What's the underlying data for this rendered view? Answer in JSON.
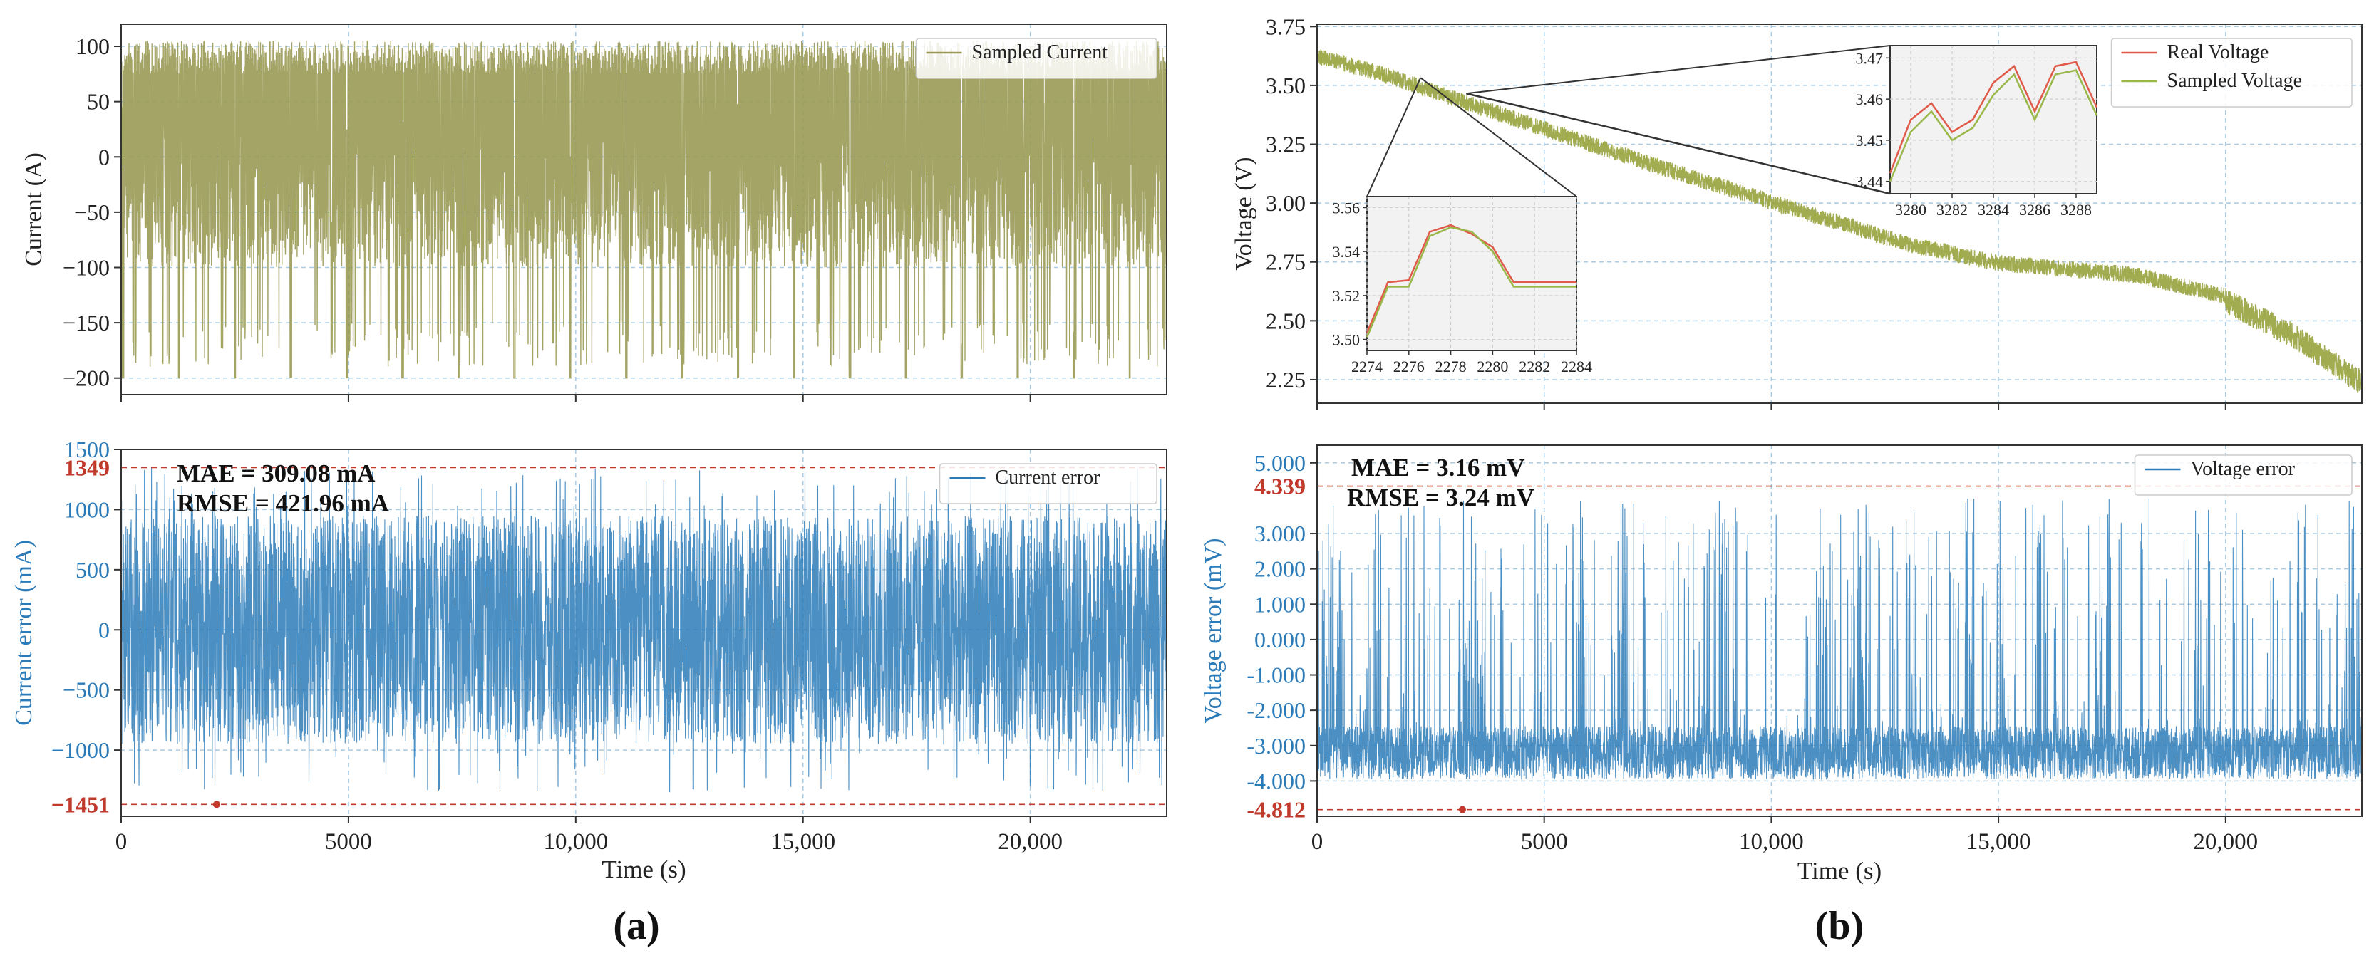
{
  "colors": {
    "current": "#9a9a55",
    "current_inset": "#a8b06a",
    "error": "#2b7bb9",
    "real_voltage": "#e05a4a",
    "sampled_voltage": "#9ab84a",
    "sampled_voltage_main": "#97a23c",
    "red_label": "#c0392b",
    "grid": "#a9cbe4",
    "inset_bg": "#f2f2f2"
  },
  "panel_labels": {
    "a": "(a)",
    "b": "(b)"
  },
  "chart_data": [
    {
      "id": "a_top",
      "type": "line",
      "title": "",
      "xlabel": "",
      "ylabel": "Current (A)",
      "xlim": [
        0,
        23000
      ],
      "ylim": [
        -215,
        120
      ],
      "yticks": [
        100,
        50,
        0,
        -50,
        -100,
        -150,
        -200
      ],
      "ytick_labels": [
        "100",
        "50",
        "0",
        "−50",
        "−100",
        "−150",
        "−200"
      ],
      "xticks": [
        0,
        5000,
        10000,
        15000,
        20000
      ],
      "grid": true,
      "legend": {
        "position": "top-right",
        "entries": [
          "Sampled Current"
        ]
      },
      "series": [
        {
          "name": "Sampled Current",
          "signal": "current_profile",
          "min": -200,
          "max": 105
        }
      ]
    },
    {
      "id": "a_bottom",
      "type": "line",
      "title": "",
      "xlabel": "Time (s)",
      "ylabel": "Current error (mA)",
      "xlim": [
        0,
        23000
      ],
      "ylim": [
        -1550,
        1500
      ],
      "yticks": [
        1500,
        1000,
        500,
        0,
        -500,
        -1000
      ],
      "ytick_labels": [
        "1500",
        "1000",
        "500",
        "0",
        "−500",
        "−1000"
      ],
      "xticks": [
        0,
        5000,
        10000,
        15000,
        20000
      ],
      "xtick_labels": [
        "0",
        "5000",
        "10,000",
        "15,000",
        "20,000"
      ],
      "grid": true,
      "legend": {
        "position": "top-right",
        "entries": [
          "Current error"
        ]
      },
      "series": [
        {
          "name": "Current error",
          "signal": "uniform_noise",
          "min": -1451,
          "max": 1349
        }
      ],
      "reference_lines": [
        {
          "value": 1349,
          "label": "1349"
        },
        {
          "value": -1451,
          "label": "−1451"
        }
      ],
      "marker": {
        "x": 2100,
        "y": -1451
      },
      "annotations": [
        "MAE = 309.08 mA",
        "RMSE = 421.96 mA"
      ]
    },
    {
      "id": "b_top",
      "type": "line",
      "title": "",
      "xlabel": "",
      "ylabel": "Voltage (V)",
      "xlim": [
        0,
        23000
      ],
      "ylim": [
        2.15,
        3.76
      ],
      "yticks": [
        3.75,
        3.5,
        3.25,
        3.0,
        2.75,
        2.5,
        2.25
      ],
      "ytick_labels": [
        "3.75",
        "3.50",
        "3.25",
        "3.00",
        "2.75",
        "2.50",
        "2.25"
      ],
      "xticks": [
        0,
        5000,
        10000,
        15000,
        20000
      ],
      "grid": true,
      "legend": {
        "position": "top-right",
        "entries": [
          "Real Voltage",
          "Sampled Voltage"
        ]
      },
      "series": [
        {
          "name": "Sampled Voltage",
          "signal": "discharge_curve",
          "anchors_x": [
            0,
            1500,
            3000,
            5000,
            8000,
            11000,
            13000,
            15000,
            18000,
            20000,
            21500,
            23000
          ],
          "anchors_y": [
            3.64,
            3.56,
            3.46,
            3.33,
            3.14,
            2.96,
            2.84,
            2.76,
            2.71,
            2.62,
            2.47,
            2.27
          ]
        }
      ],
      "insets": [
        {
          "id": "inset_left",
          "zoom_from_x": 2278,
          "xlim": [
            2274,
            2284
          ],
          "ylim": [
            3.495,
            3.565
          ],
          "xticks": [
            2274,
            2276,
            2278,
            2280,
            2282,
            2284
          ],
          "yticks": [
            3.5,
            3.52,
            3.54,
            3.56
          ],
          "ytick_labels": [
            "3.50",
            "3.52",
            "3.54",
            "3.56"
          ],
          "series": [
            {
              "name": "Real Voltage",
              "x": [
                2274,
                2275,
                2276,
                2277,
                2278,
                2279,
                2280,
                2281,
                2282,
                2283,
                2284
              ],
              "y": [
                3.503,
                3.526,
                3.527,
                3.549,
                3.552,
                3.548,
                3.542,
                3.526,
                3.526,
                3.526,
                3.526
              ]
            },
            {
              "name": "Sampled Voltage",
              "x": [
                2274,
                2275,
                2276,
                2277,
                2278,
                2279,
                2280,
                2281,
                2282,
                2283,
                2284
              ],
              "y": [
                3.501,
                3.524,
                3.524,
                3.547,
                3.551,
                3.549,
                3.54,
                3.524,
                3.524,
                3.524,
                3.524
              ]
            }
          ]
        },
        {
          "id": "inset_right",
          "zoom_from_x": 3284,
          "xlim": [
            3279,
            3289
          ],
          "ylim": [
            3.437,
            3.473
          ],
          "xticks": [
            3280,
            3282,
            3284,
            3286,
            3288
          ],
          "yticks": [
            3.44,
            3.45,
            3.46,
            3.47
          ],
          "ytick_labels": [
            "3.44",
            "3.45",
            "3.46",
            "3.47"
          ],
          "series": [
            {
              "name": "Real Voltage",
              "x": [
                3279,
                3280,
                3281,
                3282,
                3283,
                3284,
                3285,
                3286,
                3287,
                3288,
                3289
              ],
              "y": [
                3.442,
                3.455,
                3.459,
                3.452,
                3.455,
                3.464,
                3.468,
                3.457,
                3.468,
                3.469,
                3.458
              ]
            },
            {
              "name": "Sampled Voltage",
              "x": [
                3279,
                3280,
                3281,
                3282,
                3283,
                3284,
                3285,
                3286,
                3287,
                3288,
                3289
              ],
              "y": [
                3.44,
                3.452,
                3.457,
                3.45,
                3.453,
                3.461,
                3.466,
                3.455,
                3.466,
                3.467,
                3.456
              ]
            }
          ]
        }
      ]
    },
    {
      "id": "b_bottom",
      "type": "line",
      "title": "",
      "xlabel": "Time (s)",
      "ylabel": "Voltage error (mV)",
      "xlim": [
        0,
        23000
      ],
      "ylim": [
        -5.0,
        5.5
      ],
      "yticks": [
        5,
        3,
        2,
        1,
        0,
        -1,
        -2,
        -3,
        -4
      ],
      "ytick_labels": [
        "5.000",
        "3.000",
        "2.000",
        "1.000",
        "0.000",
        "-1.000",
        "-2.000",
        "-3.000",
        "-4.000"
      ],
      "xticks": [
        0,
        5000,
        10000,
        15000,
        20000
      ],
      "xtick_labels": [
        "0",
        "5000",
        "10,000",
        "15,000",
        "20,000"
      ],
      "grid": true,
      "legend": {
        "position": "top-right",
        "entries": [
          "Voltage error"
        ]
      },
      "series": [
        {
          "name": "Voltage error",
          "signal": "skewed_noise",
          "min": -4.812,
          "max": 4.339,
          "base": -3.2
        }
      ],
      "reference_lines": [
        {
          "value": 4.339,
          "label": "4.339"
        },
        {
          "value": -4.812,
          "label": "-4.812"
        }
      ],
      "marker": {
        "x": 3200,
        "y": -4.812
      },
      "annotations": [
        "MAE = 3.16 mV",
        "RMSE = 3.24 mV"
      ]
    }
  ]
}
